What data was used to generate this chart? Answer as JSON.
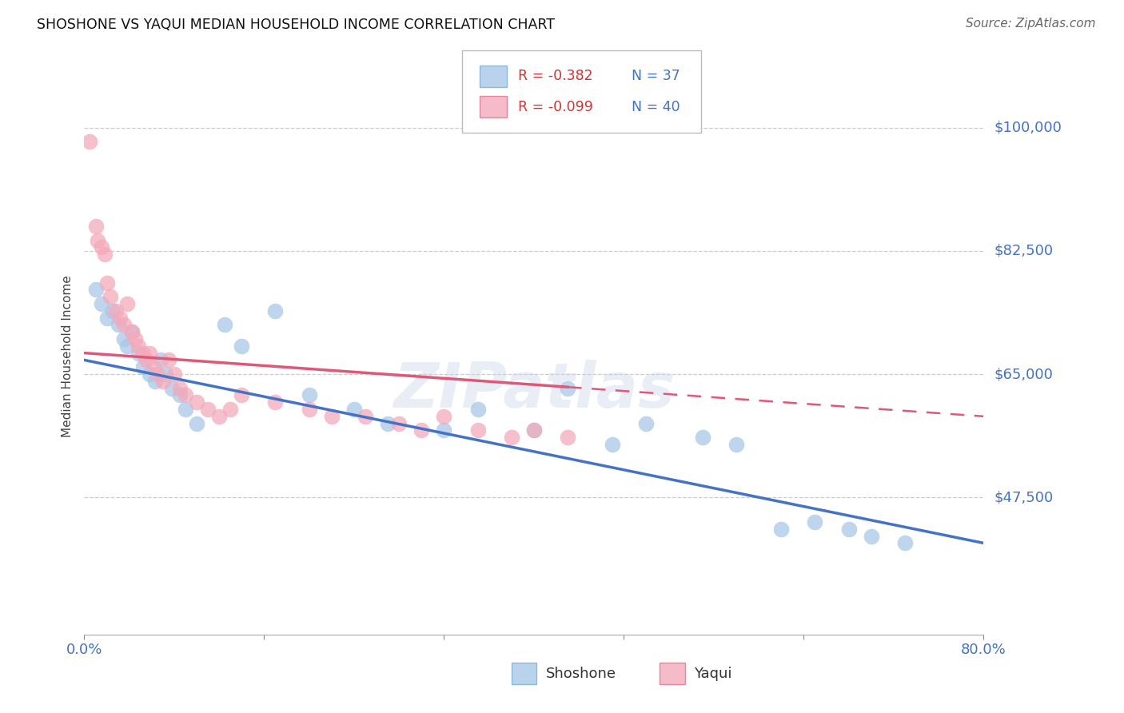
{
  "title": "SHOSHONE VS YAQUI MEDIAN HOUSEHOLD INCOME CORRELATION CHART",
  "source": "Source: ZipAtlas.com",
  "ylabel": "Median Household Income",
  "ytick_labels": [
    "$100,000",
    "$82,500",
    "$65,000",
    "$47,500"
  ],
  "ytick_values": [
    100000,
    82500,
    65000,
    47500
  ],
  "ymin": 28000,
  "ymax": 107000,
  "xmin": 0.0,
  "xmax": 80.0,
  "shoshone_color": "#a8c8e8",
  "shoshone_edge": "#7aadd4",
  "yaqui_color": "#f4aabb",
  "yaqui_edge": "#e07090",
  "trend_shoshone_color": "#4472c4",
  "trend_yaqui_color": "#e05878",
  "legend_r_shoshone": "-0.382",
  "legend_n_shoshone": "37",
  "legend_r_yaqui": "-0.099",
  "legend_n_yaqui": "40",
  "watermark": "ZIPatlas",
  "shoshone_x": [
    1.0,
    1.5,
    2.0,
    2.5,
    3.0,
    3.5,
    3.8,
    4.2,
    4.8,
    5.2,
    5.8,
    6.3,
    6.8,
    7.2,
    7.8,
    8.5,
    9.0,
    10.0,
    12.5,
    14.0,
    17.0,
    20.0,
    24.0,
    27.0,
    32.0,
    35.0,
    40.0,
    43.0,
    47.0,
    50.0,
    55.0,
    58.0,
    62.0,
    65.0,
    68.0,
    70.0,
    73.0
  ],
  "shoshone_y": [
    77000,
    75000,
    73000,
    74000,
    72000,
    70000,
    69000,
    71000,
    68000,
    66000,
    65000,
    64000,
    67000,
    65000,
    63000,
    62000,
    60000,
    58000,
    72000,
    69000,
    74000,
    62000,
    60000,
    58000,
    57000,
    60000,
    57000,
    63000,
    55000,
    58000,
    56000,
    55000,
    43000,
    44000,
    43000,
    42000,
    41000
  ],
  "yaqui_x": [
    0.5,
    1.0,
    1.2,
    1.5,
    1.8,
    2.0,
    2.3,
    2.8,
    3.2,
    3.5,
    3.8,
    4.2,
    4.5,
    4.8,
    5.2,
    5.5,
    5.8,
    6.2,
    6.5,
    7.0,
    7.5,
    8.0,
    8.5,
    9.0,
    10.0,
    11.0,
    12.0,
    13.0,
    14.0,
    17.0,
    20.0,
    22.0,
    25.0,
    28.0,
    30.0,
    32.0,
    35.0,
    38.0,
    40.0,
    43.0
  ],
  "yaqui_x_dash_end": 55.0,
  "yaqui_y": [
    98000,
    86000,
    84000,
    83000,
    82000,
    78000,
    76000,
    74000,
    73000,
    72000,
    75000,
    71000,
    70000,
    69000,
    68000,
    67000,
    68000,
    66000,
    65000,
    64000,
    67000,
    65000,
    63000,
    62000,
    61000,
    60000,
    59000,
    60000,
    62000,
    61000,
    60000,
    59000,
    59000,
    58000,
    57000,
    59000,
    57000,
    56000,
    57000,
    56000
  ]
}
